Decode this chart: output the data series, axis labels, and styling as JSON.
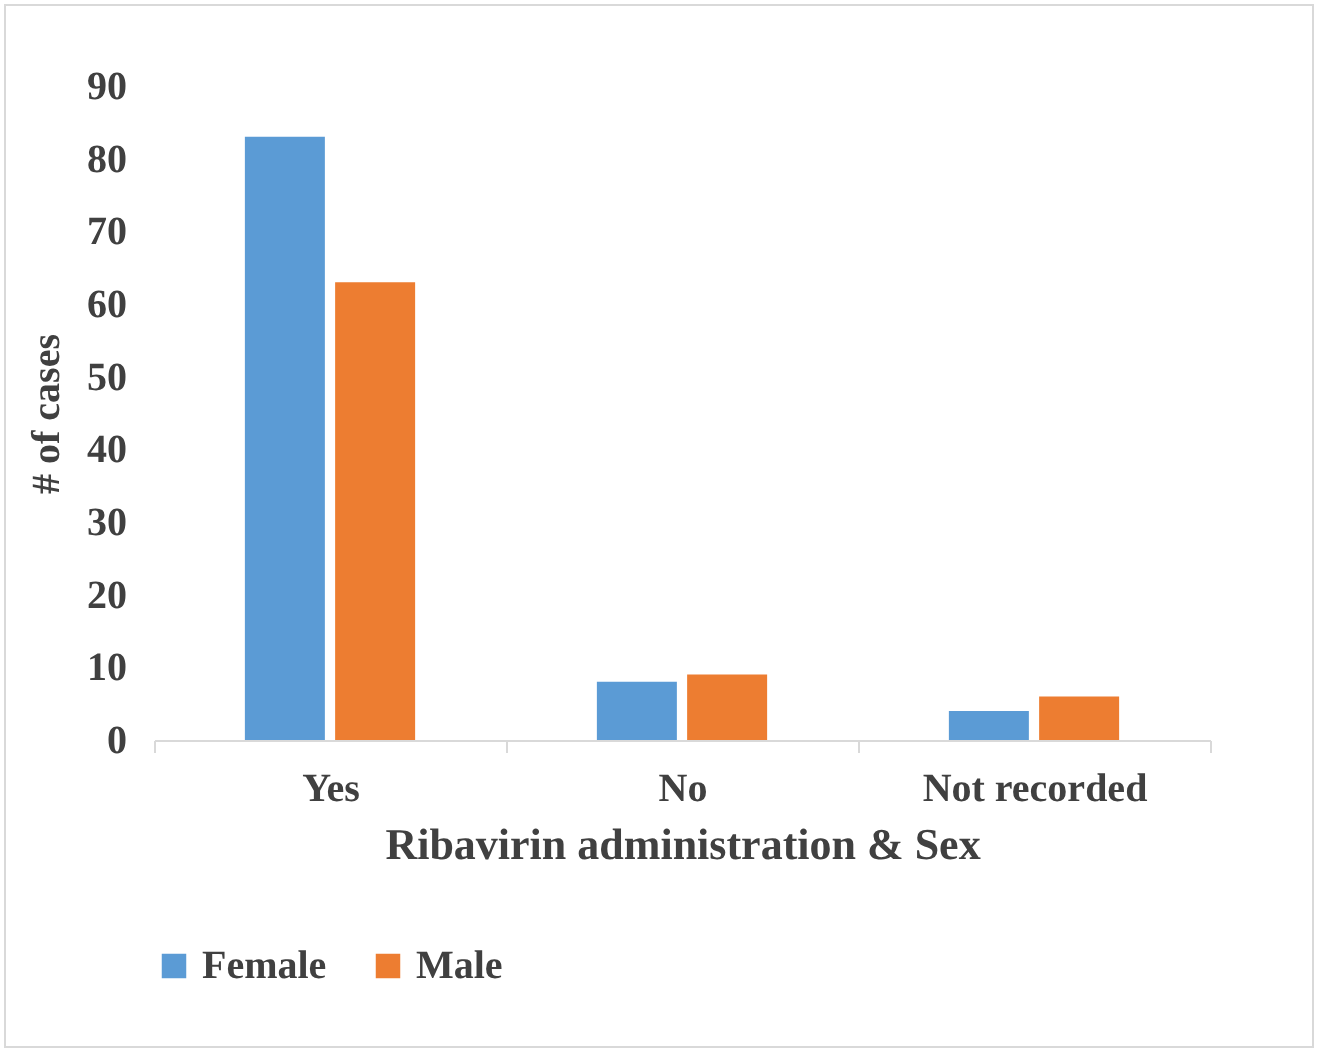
{
  "chart_data": {
    "type": "bar",
    "xlabel": "Ribavirin administration & Sex",
    "ylabel": "# of cases",
    "categories": [
      "Yes",
      "No",
      "Not recorded"
    ],
    "series": [
      {
        "name": "Female",
        "color": "#5b9bd5",
        "values": [
          83,
          8,
          4
        ]
      },
      {
        "name": "Male",
        "color": "#ed7d31",
        "values": [
          63,
          9,
          6
        ]
      }
    ],
    "ylim": [
      0,
      90
    ],
    "yticks": [
      0,
      10,
      20,
      30,
      40,
      50,
      60,
      70,
      80,
      90
    ],
    "grid": false,
    "legend": "bottom"
  }
}
